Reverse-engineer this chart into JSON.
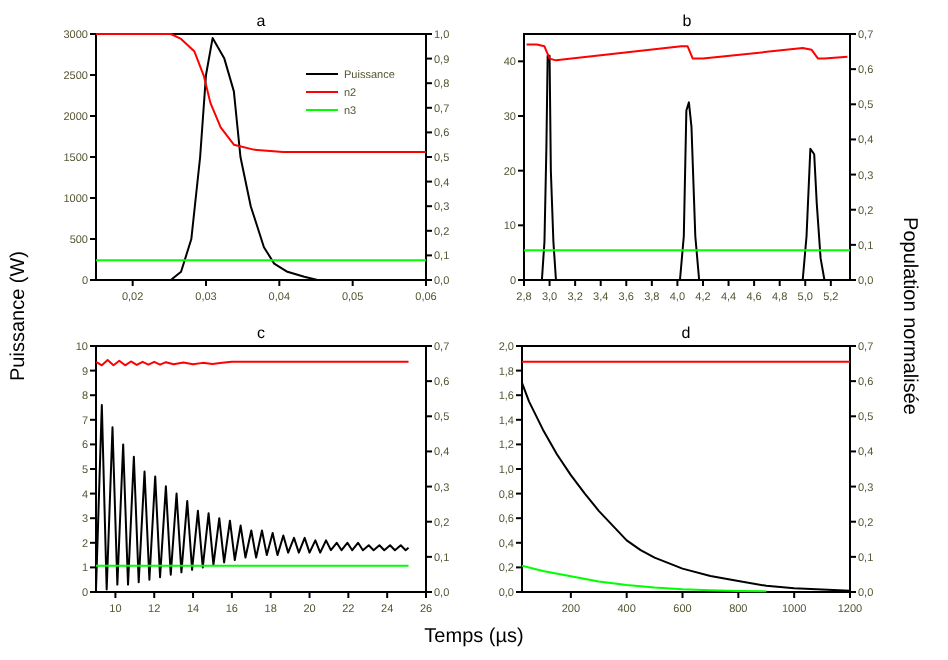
{
  "chart_data": [
    {
      "type": "line",
      "title": "a",
      "xlabel": "Temps (µs)",
      "ylabel": "Puissance (W)",
      "y2label": "Population normalisée",
      "legend": "top right",
      "xlim": [
        0.015,
        0.06
      ],
      "xticks": [
        {
          "value": 0.02,
          "label": "0,02"
        },
        {
          "value": 0.03,
          "label": "0,03"
        },
        {
          "value": 0.04,
          "label": "0,04"
        },
        {
          "value": 0.05,
          "label": "0,05"
        },
        {
          "value": 0.06,
          "label": "0,06"
        }
      ],
      "ylim": [
        0,
        3000
      ],
      "yticks": [
        0,
        500,
        1000,
        1500,
        2000,
        2500,
        3000
      ],
      "y2lim": [
        0,
        1
      ],
      "y2ticks": [
        {
          "value": 0,
          "label": "0,0"
        },
        {
          "value": 0.1,
          "label": "0,1"
        },
        {
          "value": 0.2,
          "label": "0,2"
        },
        {
          "value": 0.3,
          "label": "0,3"
        },
        {
          "value": 0.4,
          "label": "0,4"
        },
        {
          "value": 0.5,
          "label": "0,5"
        },
        {
          "value": 0.6,
          "label": "0,6"
        },
        {
          "value": 0.7,
          "label": "0,7"
        },
        {
          "value": 0.8,
          "label": "0,8"
        },
        {
          "value": 0.9,
          "label": "0,9"
        },
        {
          "value": 1,
          "label": "1,0"
        }
      ],
      "series": [
        {
          "name": "Puissance",
          "color": "#000000",
          "x": [
            0.0252,
            0.0266,
            0.028,
            0.0292,
            0.03,
            0.0309,
            0.0325,
            0.0338,
            0.0347,
            0.0361,
            0.0379,
            0.0393,
            0.0411,
            0.0434,
            0.0452
          ],
          "values": [
            0,
            100,
            500,
            1500,
            2500,
            2950,
            2700,
            2300,
            1500,
            900,
            400,
            200,
            100,
            40,
            0
          ]
        },
        {
          "name": "n2",
          "color": "#ff0000",
          "axis": "y2",
          "x": [
            0.015,
            0.0252,
            0.0266,
            0.0284,
            0.0297,
            0.0306,
            0.032,
            0.0338,
            0.0365,
            0.0405,
            0.06
          ],
          "values": [
            1,
            1,
            0.98,
            0.93,
            0.83,
            0.72,
            0.62,
            0.55,
            0.53,
            0.52,
            0.52
          ]
        },
        {
          "name": "n3",
          "color": "#00ff00",
          "axis": "y2",
          "x": [
            0.015,
            0.06
          ],
          "values": [
            0.08,
            0.08
          ]
        }
      ]
    },
    {
      "type": "line",
      "title": "b",
      "xlim": [
        2.8,
        5.35
      ],
      "xticks": [
        {
          "value": 2.8,
          "label": "2,8"
        },
        {
          "value": 3,
          "label": "3,0"
        },
        {
          "value": 3.2,
          "label": "3,2"
        },
        {
          "value": 3.4,
          "label": "3,4"
        },
        {
          "value": 3.6,
          "label": "3,6"
        },
        {
          "value": 3.8,
          "label": "3,8"
        },
        {
          "value": 4,
          "label": "4,0"
        },
        {
          "value": 4.2,
          "label": "4,2"
        },
        {
          "value": 4.4,
          "label": "4,4"
        },
        {
          "value": 4.6,
          "label": "4,6"
        },
        {
          "value": 4.8,
          "label": "4,8"
        },
        {
          "value": 5,
          "label": "5,0"
        },
        {
          "value": 5.2,
          "label": "5,2"
        }
      ],
      "ylim": [
        0,
        45
      ],
      "yticks": [
        0,
        10,
        20,
        30,
        40
      ],
      "y2lim": [
        0,
        0.7
      ],
      "y2ticks": [
        {
          "value": 0,
          "label": "0,0"
        },
        {
          "value": 0.1,
          "label": "0,1"
        },
        {
          "value": 0.2,
          "label": "0,2"
        },
        {
          "value": 0.3,
          "label": "0,3"
        },
        {
          "value": 0.4,
          "label": "0,4"
        },
        {
          "value": 0.5,
          "label": "0,5"
        },
        {
          "value": 0.6,
          "label": "0,6"
        },
        {
          "value": 0.7,
          "label": "0,7"
        }
      ],
      "series": [
        {
          "color": "#000000",
          "x": [
            2.94,
            2.96,
            2.975,
            2.985,
            3.0,
            3.01,
            3.03,
            3.05,
            4.02,
            4.05,
            4.07,
            4.09,
            4.11,
            4.14,
            4.17,
            4.98,
            5.01,
            5.04,
            5.07,
            5.09,
            5.12,
            5.15
          ],
          "values": [
            0,
            7,
            24,
            41,
            41,
            20,
            7,
            0,
            0,
            8,
            31,
            32.5,
            28,
            8,
            0,
            0,
            8,
            24,
            23,
            14,
            4,
            0
          ]
        },
        {
          "color": "#ff0000",
          "axis": "y2",
          "x": [
            2.82,
            2.9,
            2.96,
            3.0,
            3.05,
            4.03,
            4.08,
            4.12,
            4.2,
            4.98,
            5.05,
            5.1,
            5.15,
            5.33
          ],
          "values": [
            0.67,
            0.67,
            0.665,
            0.63,
            0.625,
            0.665,
            0.665,
            0.63,
            0.63,
            0.66,
            0.655,
            0.63,
            0.63,
            0.635
          ]
        },
        {
          "color": "#00ff00",
          "axis": "y2",
          "x": [
            2.8,
            5.35
          ],
          "values": [
            0.085,
            0.085
          ]
        }
      ]
    },
    {
      "type": "line",
      "title": "c",
      "xlim": [
        9,
        26
      ],
      "xticks": [
        10,
        12,
        14,
        16,
        18,
        20,
        22,
        24,
        26
      ],
      "ylim": [
        0,
        10
      ],
      "yticks": [
        0,
        1,
        2,
        3,
        4,
        5,
        6,
        7,
        8,
        9,
        10
      ],
      "y2lim": [
        0,
        0.7
      ],
      "y2ticks": [
        {
          "value": 0,
          "label": "0,0"
        },
        {
          "value": 0.1,
          "label": "0,1"
        },
        {
          "value": 0.2,
          "label": "0,2"
        },
        {
          "value": 0.3,
          "label": "0,3"
        },
        {
          "value": 0.4,
          "label": "0,4"
        },
        {
          "value": 0.5,
          "label": "0,5"
        },
        {
          "value": 0.6,
          "label": "0,6"
        },
        {
          "value": 0.7,
          "label": "0,7"
        }
      ],
      "series": [
        {
          "color": "#000000",
          "x": [
            9.0,
            9.3,
            9.55,
            9.85,
            10.1,
            10.4,
            10.65,
            10.95,
            11.2,
            11.5,
            11.75,
            12.05,
            12.3,
            12.6,
            12.85,
            13.15,
            13.4,
            13.7,
            13.95,
            14.25,
            14.5,
            14.8,
            15.05,
            15.35,
            15.6,
            15.9,
            16.15,
            16.45,
            16.7,
            17.0,
            17.25,
            17.55,
            17.8,
            18.1,
            18.35,
            18.65,
            18.9,
            19.2,
            19.45,
            19.75,
            20.0,
            20.3,
            20.55,
            20.85,
            21.1,
            21.4,
            21.65,
            21.95,
            22.2,
            22.5,
            22.75,
            23.05,
            23.3,
            23.6,
            23.85,
            24.15,
            24.4,
            24.7,
            24.95,
            25.1
          ],
          "values": [
            0.1,
            7.6,
            0.1,
            6.7,
            0.3,
            6.0,
            0.3,
            5.5,
            0.4,
            4.9,
            0.5,
            4.7,
            0.6,
            4.3,
            0.7,
            4.0,
            0.8,
            3.7,
            0.9,
            3.3,
            1.0,
            3.2,
            1.1,
            3.0,
            1.2,
            2.9,
            1.3,
            2.7,
            1.4,
            2.5,
            1.4,
            2.5,
            1.5,
            2.4,
            1.5,
            2.3,
            1.6,
            2.2,
            1.6,
            2.2,
            1.6,
            2.1,
            1.6,
            2.1,
            1.7,
            2.0,
            1.7,
            2.0,
            1.7,
            2.0,
            1.7,
            1.9,
            1.7,
            1.9,
            1.7,
            1.9,
            1.7,
            1.9,
            1.7,
            1.8
          ]
        },
        {
          "color": "#ff0000",
          "axis": "y2",
          "x": [
            9.0,
            9.3,
            9.6,
            9.9,
            10.2,
            10.5,
            10.8,
            11.1,
            11.4,
            11.7,
            12.0,
            12.3,
            12.6,
            13.0,
            13.5,
            14.0,
            14.5,
            15.0,
            15.5,
            16.0,
            25.1
          ],
          "values": [
            0.655,
            0.645,
            0.66,
            0.645,
            0.658,
            0.645,
            0.656,
            0.646,
            0.655,
            0.647,
            0.655,
            0.647,
            0.654,
            0.648,
            0.653,
            0.648,
            0.652,
            0.649,
            0.652,
            0.655,
            0.655
          ]
        },
        {
          "color": "#00ff00",
          "axis": "y2",
          "x": [
            9,
            25.1
          ],
          "values": [
            0.075,
            0.075
          ]
        }
      ]
    },
    {
      "type": "line",
      "title": "d",
      "xlim": [
        25,
        1200
      ],
      "xticks": [
        200,
        400,
        600,
        800,
        1000,
        1200
      ],
      "ylim": [
        0,
        2
      ],
      "yticks": [
        {
          "value": 0,
          "label": "0,0"
        },
        {
          "value": 0.2,
          "label": "0,2"
        },
        {
          "value": 0.4,
          "label": "0,4"
        },
        {
          "value": 0.6,
          "label": "0,6"
        },
        {
          "value": 0.8,
          "label": "0,8"
        },
        {
          "value": 1,
          "label": "1,0"
        },
        {
          "value": 1.2,
          "label": "1,2"
        },
        {
          "value": 1.4,
          "label": "1,4"
        },
        {
          "value": 1.6,
          "label": "1,6"
        },
        {
          "value": 1.8,
          "label": "1,8"
        },
        {
          "value": 2,
          "label": "2,0"
        }
      ],
      "y2lim": [
        0,
        0.7
      ],
      "y2ticks": [
        {
          "value": 0,
          "label": "0,0"
        },
        {
          "value": 0.1,
          "label": "0,1"
        },
        {
          "value": 0.2,
          "label": "0,2"
        },
        {
          "value": 0.3,
          "label": "0,3"
        },
        {
          "value": 0.4,
          "label": "0,4"
        },
        {
          "value": 0.5,
          "label": "0,5"
        },
        {
          "value": 0.6,
          "label": "0,6"
        },
        {
          "value": 0.7,
          "label": "0,7"
        }
      ],
      "series": [
        {
          "color": "#000000",
          "x": [
            25,
            50,
            100,
            150,
            200,
            250,
            300,
            350,
            400,
            450,
            500,
            600,
            700,
            800,
            900,
            1000,
            1100,
            1200
          ],
          "values": [
            1.7,
            1.55,
            1.32,
            1.12,
            0.95,
            0.8,
            0.66,
            0.54,
            0.42,
            0.34,
            0.28,
            0.19,
            0.13,
            0.09,
            0.05,
            0.03,
            0.02,
            0.01
          ]
        },
        {
          "color": "#ff0000",
          "axis": "y2",
          "x": [
            25,
            1200
          ],
          "values": [
            0.655,
            0.655
          ]
        },
        {
          "color": "#00ff00",
          "axis": "y2",
          "x": [
            25,
            100,
            200,
            300,
            400,
            500,
            600,
            700,
            800,
            900
          ],
          "values": [
            0.075,
            0.06,
            0.045,
            0.03,
            0.02,
            0.013,
            0.008,
            0.005,
            0.003,
            0.002
          ]
        }
      ]
    }
  ]
}
